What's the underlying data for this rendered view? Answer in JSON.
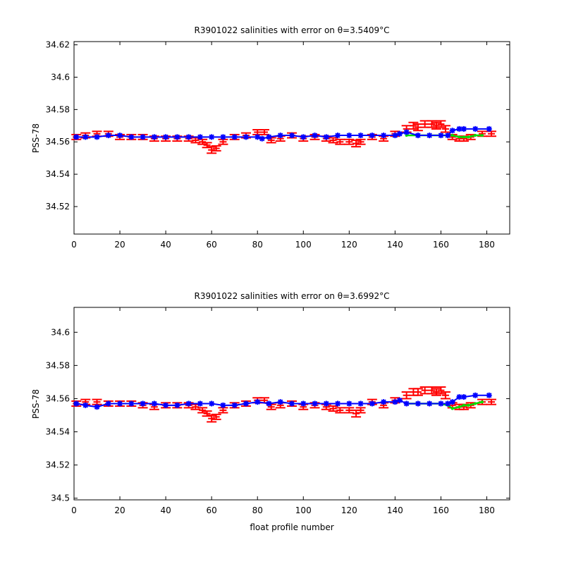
{
  "colors": {
    "raw": "#ff0000",
    "calibrated": "#0000ff",
    "reference": "#00dd00",
    "axes": "#000000",
    "background": "#ffffff"
  },
  "chart_data": [
    {
      "type": "scatter",
      "title": "R3901022 salinities with error on θ=3.5409°C",
      "xlabel": "",
      "ylabel": "PSS-78",
      "xlim": [
        0,
        190
      ],
      "ylim": [
        34.503,
        34.622
      ],
      "x_ticks": [
        0,
        20,
        40,
        60,
        80,
        100,
        120,
        140,
        160,
        180
      ],
      "y_ticks": [
        34.52,
        34.54,
        34.56,
        34.58,
        34.6,
        34.62
      ],
      "y_tick_labels": [
        "34.52",
        "34.54",
        "34.56",
        "34.58",
        "34.6",
        "34.62"
      ],
      "grid": false,
      "series": [
        {
          "marker": "errorbar",
          "color": "#ff0000",
          "x": [
            1,
            5,
            10,
            15,
            20,
            25,
            30,
            35,
            40,
            45,
            50,
            53,
            56,
            58,
            60,
            62,
            65,
            70,
            75,
            80,
            83,
            86,
            90,
            95,
            100,
            105,
            110,
            113,
            116,
            120,
            123,
            125,
            130,
            135,
            140,
            145,
            148,
            150,
            153,
            156,
            158,
            160,
            162,
            165,
            168,
            170,
            173,
            178,
            182
          ],
          "values": [
            34.563,
            34.564,
            34.565,
            34.565,
            34.563,
            34.563,
            34.563,
            34.562,
            34.562,
            34.562,
            34.562,
            34.561,
            34.56,
            34.558,
            34.555,
            34.556,
            34.56,
            34.563,
            34.564,
            34.566,
            34.566,
            34.561,
            34.562,
            34.564,
            34.562,
            34.563,
            34.562,
            34.561,
            34.56,
            34.56,
            34.559,
            34.56,
            34.563,
            34.562,
            34.565,
            34.568,
            34.57,
            34.569,
            34.571,
            34.571,
            34.57,
            34.571,
            34.568,
            34.563,
            34.562,
            34.562,
            34.563,
            34.565,
            34.565
          ],
          "error": [
            0.0015,
            0.0015,
            0.0015,
            0.0015,
            0.0015,
            0.0015,
            0.0015,
            0.0015,
            0.0015,
            0.0015,
            0.0015,
            0.0015,
            0.0015,
            0.0015,
            0.002,
            0.0015,
            0.0015,
            0.0015,
            0.0015,
            0.0015,
            0.0015,
            0.0015,
            0.0015,
            0.0015,
            0.0015,
            0.0015,
            0.0015,
            0.0015,
            0.0015,
            0.0015,
            0.002,
            0.0015,
            0.0015,
            0.0015,
            0.0015,
            0.002,
            0.002,
            0.002,
            0.002,
            0.002,
            0.002,
            0.002,
            0.002,
            0.0015,
            0.0015,
            0.0015,
            0.0015,
            0.0015,
            0.0015
          ]
        },
        {
          "marker": "line",
          "color": "#00dd00",
          "x": [
            145,
            150,
            155,
            160,
            163,
            165,
            168,
            170,
            172,
            175,
            178
          ],
          "values": [
            34.564,
            34.564,
            34.564,
            34.564,
            34.564,
            34.564,
            34.563,
            34.563,
            34.563,
            34.564,
            34.564
          ]
        },
        {
          "marker": "star",
          "color": "#0000ff",
          "x": [
            1,
            5,
            10,
            15,
            20,
            25,
            30,
            35,
            40,
            45,
            50,
            55,
            60,
            65,
            70,
            75,
            80,
            82,
            85,
            90,
            95,
            100,
            105,
            110,
            115,
            120,
            125,
            130,
            135,
            140,
            142,
            145,
            150,
            155,
            160,
            163,
            165,
            168,
            170,
            175,
            181
          ],
          "values": [
            34.563,
            34.563,
            34.563,
            34.564,
            34.564,
            34.563,
            34.563,
            34.563,
            34.563,
            34.563,
            34.563,
            34.563,
            34.563,
            34.563,
            34.563,
            34.563,
            34.563,
            34.562,
            34.563,
            34.564,
            34.564,
            34.563,
            34.564,
            34.563,
            34.564,
            34.564,
            34.564,
            34.564,
            34.564,
            34.564,
            34.565,
            34.566,
            34.564,
            34.564,
            34.564,
            34.564,
            34.567,
            34.568,
            34.568,
            34.568,
            34.568
          ]
        }
      ]
    },
    {
      "type": "scatter",
      "title": "R3901022 salinities with error on θ=3.6992°C",
      "xlabel": "float profile number",
      "ylabel": "PSS-78",
      "xlim": [
        0,
        190
      ],
      "ylim": [
        34.499,
        34.615
      ],
      "x_ticks": [
        0,
        20,
        40,
        60,
        80,
        100,
        120,
        140,
        160,
        180
      ],
      "y_ticks": [
        34.5,
        34.52,
        34.54,
        34.56,
        34.58,
        34.6
      ],
      "y_tick_labels": [
        "34.5",
        "34.52",
        "34.54",
        "34.56",
        "34.58",
        "34.6"
      ],
      "grid": false,
      "series": [
        {
          "marker": "errorbar",
          "color": "#ff0000",
          "x": [
            1,
            5,
            10,
            15,
            20,
            25,
            30,
            35,
            40,
            45,
            50,
            53,
            56,
            58,
            60,
            62,
            65,
            70,
            75,
            80,
            83,
            86,
            90,
            95,
            100,
            105,
            110,
            113,
            116,
            120,
            123,
            125,
            130,
            135,
            140,
            145,
            148,
            150,
            153,
            156,
            158,
            160,
            162,
            165,
            168,
            170,
            173,
            178,
            182
          ],
          "values": [
            34.557,
            34.558,
            34.558,
            34.557,
            34.557,
            34.557,
            34.556,
            34.555,
            34.556,
            34.556,
            34.556,
            34.555,
            34.553,
            34.551,
            34.548,
            34.549,
            34.553,
            34.556,
            34.557,
            34.559,
            34.559,
            34.555,
            34.556,
            34.557,
            34.555,
            34.556,
            34.555,
            34.554,
            34.553,
            34.553,
            34.551,
            34.553,
            34.558,
            34.556,
            34.559,
            34.562,
            34.564,
            34.564,
            34.565,
            34.565,
            34.564,
            34.565,
            34.562,
            34.556,
            34.555,
            34.555,
            34.556,
            34.558,
            34.558
          ],
          "error": [
            0.0015,
            0.0015,
            0.0015,
            0.0015,
            0.0015,
            0.0015,
            0.0015,
            0.0015,
            0.0015,
            0.0015,
            0.0015,
            0.0015,
            0.0015,
            0.0015,
            0.002,
            0.0015,
            0.0015,
            0.0015,
            0.0015,
            0.0015,
            0.0015,
            0.0015,
            0.0015,
            0.0015,
            0.0015,
            0.0015,
            0.0015,
            0.0015,
            0.0015,
            0.0015,
            0.002,
            0.0015,
            0.0015,
            0.0015,
            0.0015,
            0.002,
            0.002,
            0.002,
            0.002,
            0.002,
            0.002,
            0.002,
            0.002,
            0.0015,
            0.0015,
            0.0015,
            0.0015,
            0.0015,
            0.0015
          ]
        },
        {
          "marker": "line",
          "color": "#00dd00",
          "x": [
            145,
            150,
            155,
            160,
            163,
            165,
            168,
            170,
            172,
            175,
            178
          ],
          "values": [
            34.557,
            34.557,
            34.557,
            34.557,
            34.556,
            34.554,
            34.555,
            34.556,
            34.556,
            34.557,
            34.558
          ]
        },
        {
          "marker": "star",
          "color": "#0000ff",
          "x": [
            1,
            5,
            10,
            15,
            20,
            25,
            30,
            35,
            40,
            45,
            50,
            55,
            60,
            65,
            70,
            75,
            80,
            85,
            90,
            95,
            100,
            105,
            110,
            115,
            120,
            125,
            130,
            135,
            140,
            142,
            145,
            150,
            155,
            160,
            163,
            165,
            168,
            170,
            175,
            181
          ],
          "values": [
            34.557,
            34.556,
            34.555,
            34.557,
            34.557,
            34.557,
            34.557,
            34.557,
            34.556,
            34.556,
            34.557,
            34.557,
            34.557,
            34.556,
            34.556,
            34.557,
            34.558,
            34.557,
            34.558,
            34.557,
            34.557,
            34.557,
            34.557,
            34.557,
            34.557,
            34.557,
            34.557,
            34.558,
            34.558,
            34.559,
            34.557,
            34.557,
            34.557,
            34.557,
            34.557,
            34.558,
            34.561,
            34.561,
            34.562,
            34.562
          ]
        }
      ]
    }
  ]
}
